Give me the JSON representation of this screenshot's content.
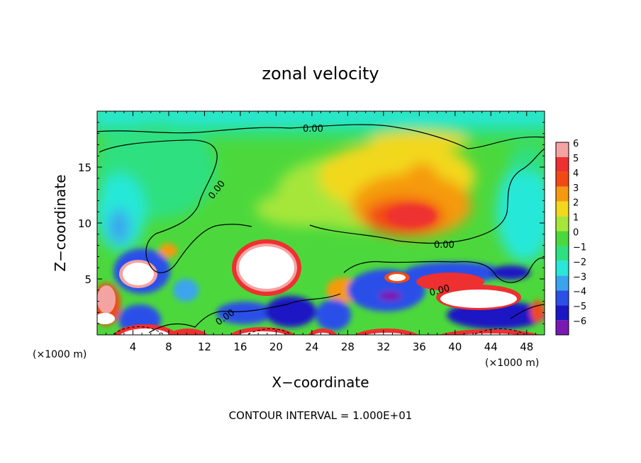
{
  "chart_data": {
    "type": "heatmap",
    "title": "zonal velocity",
    "xlabel": "X−coordinate",
    "ylabel": "Z−coordinate",
    "x_unit": "(×1000 m)",
    "z_unit": "(×1000 m)",
    "xlim": [
      0,
      50
    ],
    "ylim": [
      0,
      20
    ],
    "x_ticks": [
      4,
      8,
      12,
      16,
      20,
      24,
      28,
      32,
      36,
      40,
      44,
      48
    ],
    "y_ticks": [
      5,
      10,
      15
    ],
    "colorbar": {
      "levels": [
        6,
        5,
        4,
        3,
        2,
        1,
        0,
        -1,
        -2,
        -3,
        -4,
        -5,
        -6
      ],
      "labels": [
        "6",
        "5",
        "4",
        "3",
        "2",
        "1",
        "0",
        "−1",
        "−2",
        "−3",
        "−4",
        "−5",
        "−6"
      ],
      "colors": [
        "#f4a3a3",
        "#ee3030",
        "#f24a12",
        "#f59a10",
        "#f2d81a",
        "#a6e63a",
        "#4cd83c",
        "#2ee080",
        "#28e8d8",
        "#3aa4ee",
        "#2a50e8",
        "#1a18c4",
        "#7a18b4"
      ]
    },
    "contour_labels": [
      "0.00",
      "0.00",
      "0.00",
      "0.00",
      "0.00"
    ],
    "annotation": "CONTOUR INTERVAL = 1.000E+01"
  }
}
